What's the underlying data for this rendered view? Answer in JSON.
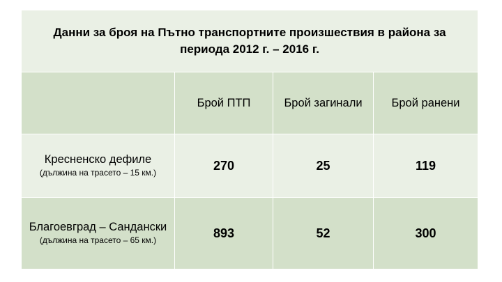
{
  "table": {
    "title": "Данни за  броя на Пътно транспортните произшествия в района за периода 2012 г. – 2016 г.",
    "headers": [
      "",
      "Брой ПТП",
      "Брой загинали",
      "Брой ранени"
    ],
    "rows": [
      {
        "name": "Кресненско дефиле",
        "note": "(дължина на трасето – 15 км.)",
        "ptp": "270",
        "killed": "25",
        "injured": "119"
      },
      {
        "name": "Благоевград – Сандански",
        "note": "(дължина на трасето – 65 км.)",
        "ptp": "893",
        "killed": "52",
        "injured": "300"
      }
    ]
  },
  "colors": {
    "light_fill": "#eaf0e5",
    "dark_fill": "#d3e0c9",
    "border": "#ffffff"
  }
}
